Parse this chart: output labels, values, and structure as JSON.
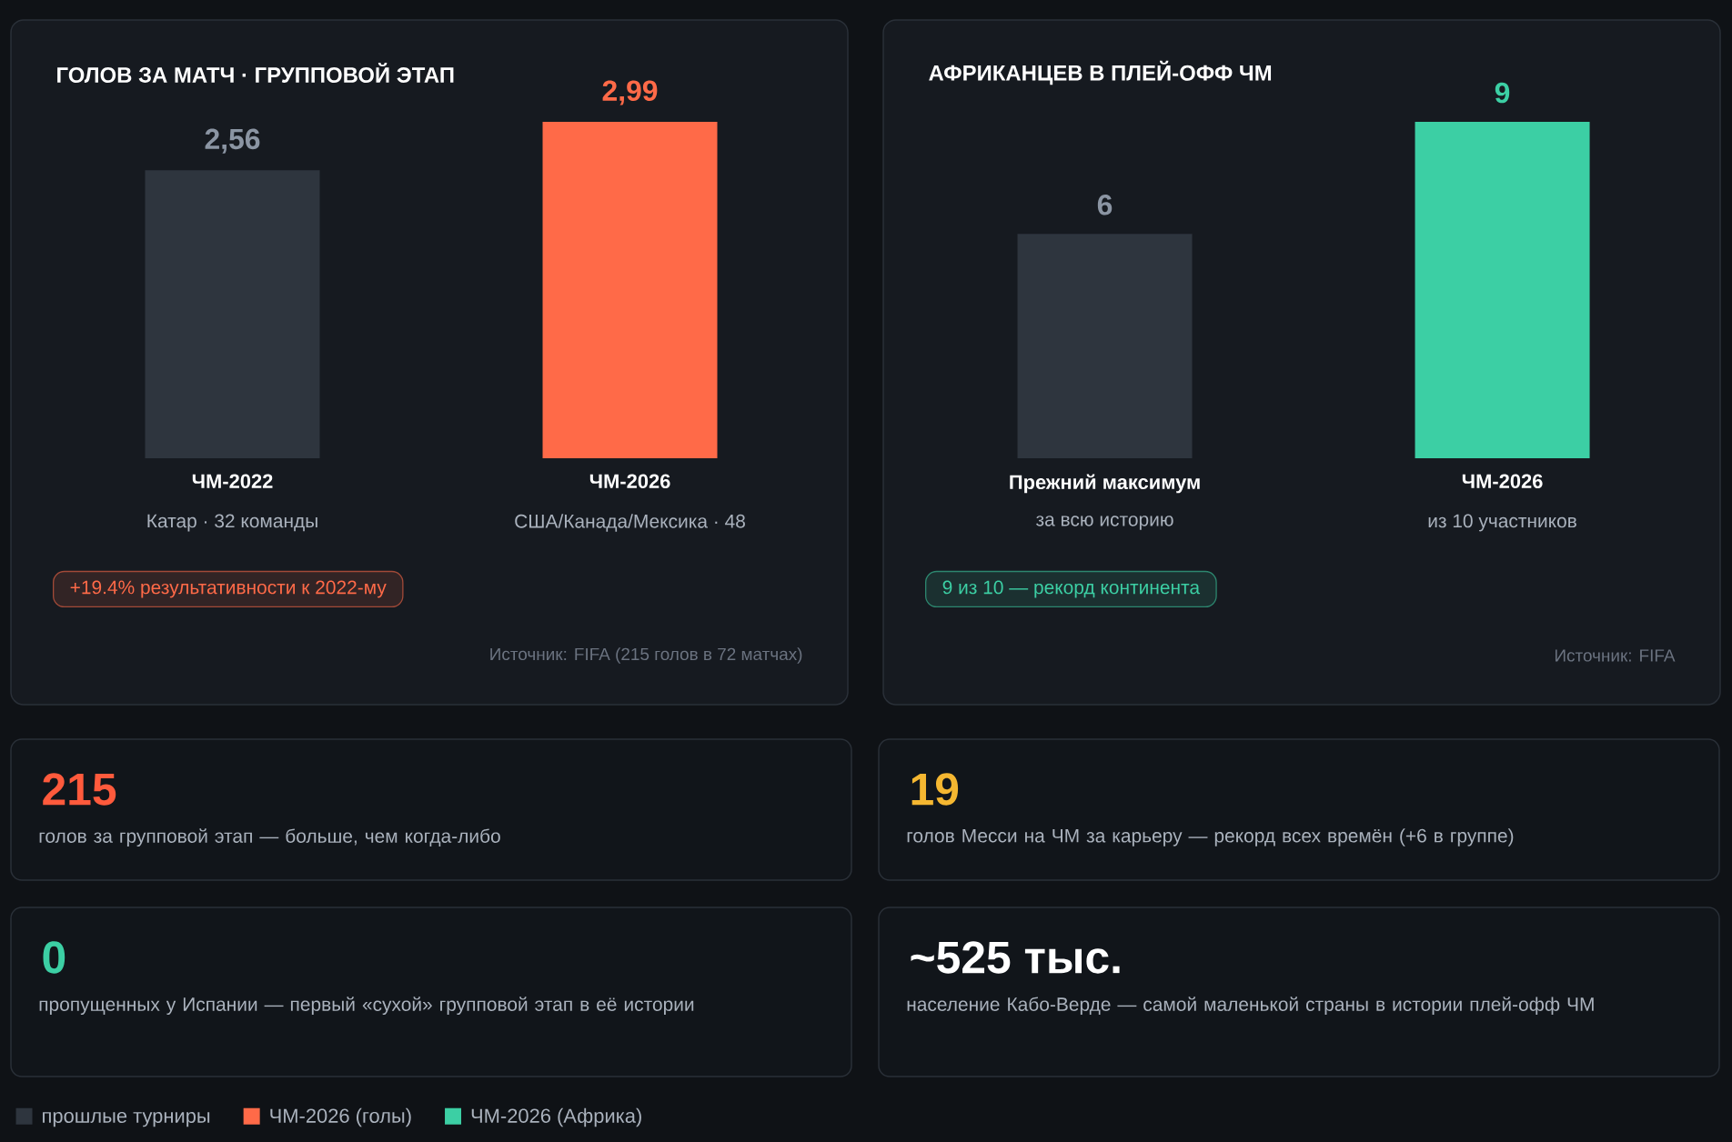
{
  "chart_data": [
    {
      "type": "bar",
      "title": "ГОЛОВ ЗА МАТЧ · ГРУППОВОЙ ЭТАП",
      "categories": [
        "ЧМ-2022",
        "ЧМ-2026"
      ],
      "series": [
        {
          "name": "прошлые турниры",
          "color": "#2e353e",
          "values": [
            2.56,
            null
          ],
          "value_labels": [
            "2,56",
            null
          ]
        },
        {
          "name": "ЧМ-2026 (голы)",
          "color": "#ff6a48",
          "values": [
            null,
            2.99
          ],
          "value_labels": [
            null,
            "2,99"
          ]
        }
      ],
      "legend": "bottom",
      "annotations": [
        "Катар · 32 команды",
        "США/Канада/Мексика · 48",
        "+19.4% результативности к 2022-му",
        "Источник: FIFA (215 голов в 72 матчах)"
      ]
    },
    {
      "type": "bar",
      "title": "АФРИКАНЦЕВ В ПЛЕЙ-ОФФ ЧМ",
      "categories": [
        "Прежний максимум",
        "ЧМ-2026"
      ],
      "series": [
        {
          "color": "#2e353e",
          "values": [
            6,
            null
          ],
          "value_labels": [
            "6",
            null
          ]
        },
        {
          "name": "ЧМ-2026 (Африка)",
          "color": "#3ccfa4",
          "values": [
            null,
            9
          ],
          "value_labels": [
            null,
            "9"
          ]
        }
      ],
      "legend": "bottom",
      "annotations": [
        "за всю историю",
        "из 10 участников",
        "9 из 10 — рекорд континента",
        "Источник: FIFA"
      ]
    },
    {
      "type": "other",
      "title": "215",
      "color": "#ff5a3c",
      "subtitle": "голов за групповой этап — больше, чем когда-либо"
    },
    {
      "type": "other",
      "title": "19",
      "color": "#f5b731",
      "subtitle": "голов Месси на ЧМ за карьеру — рекорд всех времён (+6 в группе)"
    },
    {
      "type": "other",
      "title": "0",
      "color": "#3ccfa4",
      "subtitle": "пропущенных у Испании — первый «сухой» групповой этап в её истории"
    },
    {
      "type": "other",
      "title": "~525 тыс.",
      "color": "#ffffff",
      "subtitle": "население Кабо-Верде — самой маленькой страны в истории плей-офф ЧМ"
    }
  ]
}
